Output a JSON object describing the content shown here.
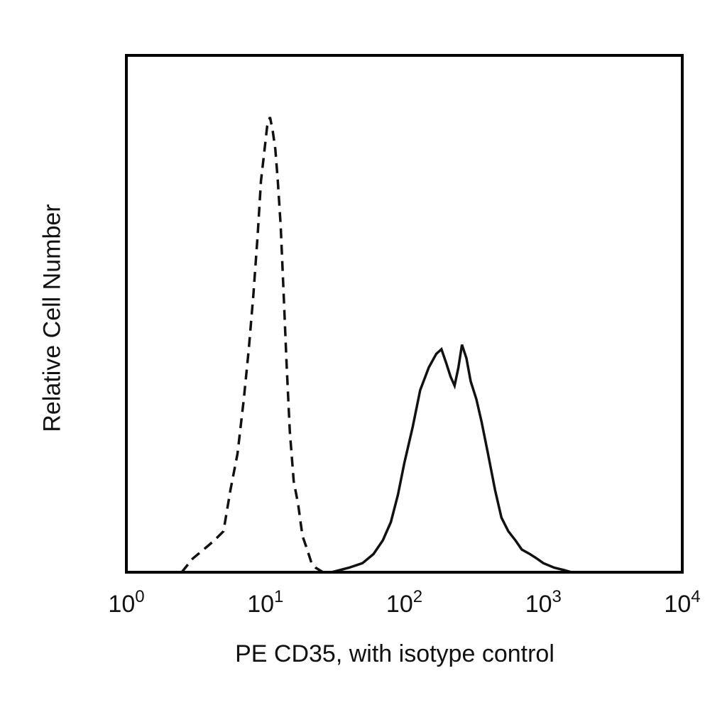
{
  "chart_data": {
    "type": "line",
    "title": "",
    "xlabel": "PE CD35, with isotype control",
    "ylabel": "Relative Cell Number",
    "xscale": "log",
    "xlim": [
      1,
      10000
    ],
    "ylim": [
      0,
      1
    ],
    "grid": false,
    "legend": "none",
    "xticks": [
      {
        "base": "10",
        "exp": "0"
      },
      {
        "base": "10",
        "exp": "1"
      },
      {
        "base": "10",
        "exp": "2"
      },
      {
        "base": "10",
        "exp": "3"
      },
      {
        "base": "10",
        "exp": "4"
      }
    ],
    "series": [
      {
        "style": "dashed",
        "color": "#111111",
        "x": [
          2.5,
          3.0,
          3.6,
          4.3,
          5.0,
          5.6,
          6.3,
          7.0,
          7.6,
          8.2,
          8.8,
          9.3,
          9.8,
          10.3,
          10.8,
          11.3,
          11.8,
          12.3,
          12.9,
          13.5,
          14.2,
          15.0,
          16.0,
          17.2,
          18.5,
          20.0,
          21.5,
          23.0,
          26.0,
          30.0,
          40.0
        ],
        "y": [
          0.0,
          0.03,
          0.05,
          0.07,
          0.09,
          0.18,
          0.26,
          0.38,
          0.49,
          0.61,
          0.74,
          0.86,
          0.92,
          0.98,
          1.0,
          0.97,
          0.93,
          0.86,
          0.76,
          0.62,
          0.46,
          0.31,
          0.2,
          0.15,
          0.08,
          0.05,
          0.02,
          0.01,
          0.0,
          0.0,
          0.0
        ]
      },
      {
        "style": "solid",
        "color": "#111111",
        "x": [
          30,
          40,
          50,
          60,
          70,
          80,
          90,
          100,
          115,
          130,
          150,
          170,
          185,
          200,
          215,
          230,
          245,
          260,
          280,
          300,
          330,
          360,
          400,
          450,
          500,
          560,
          630,
          700,
          800,
          900,
          1000,
          1200,
          1400,
          1600
        ],
        "y": [
          0.0,
          0.01,
          0.02,
          0.04,
          0.07,
          0.11,
          0.17,
          0.24,
          0.32,
          0.4,
          0.45,
          0.48,
          0.49,
          0.46,
          0.43,
          0.41,
          0.45,
          0.5,
          0.47,
          0.42,
          0.38,
          0.33,
          0.26,
          0.18,
          0.12,
          0.09,
          0.07,
          0.05,
          0.04,
          0.03,
          0.02,
          0.01,
          0.005,
          0.0
        ]
      }
    ]
  }
}
